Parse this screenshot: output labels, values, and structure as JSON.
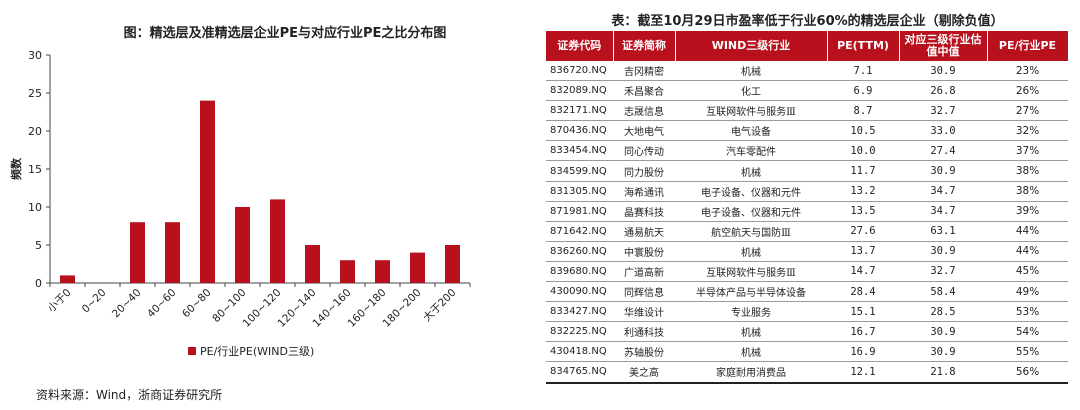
{
  "chart_title": "图：精选层及准精选层企业PE与对应行业PE之比分布图",
  "source": "资料来源：Wind，浙商证券研究所",
  "colors": {
    "bar": "#b8101d",
    "axis": "#444444",
    "header_bg": "#b8101d"
  },
  "chart_data": {
    "type": "bar",
    "categories": [
      "小于0",
      "0~20",
      "20~40",
      "40~60",
      "60~80",
      "80~100",
      "100~120",
      "120~140",
      "140~160",
      "160~180",
      "180~200",
      "大于200"
    ],
    "series": [
      {
        "name": "PE/行业PE(WIND三级)",
        "values": [
          1,
          0,
          8,
          8,
          24,
          10,
          11,
          5,
          3,
          3,
          4,
          5
        ]
      }
    ],
    "ylabel": "频数",
    "xlabel": "",
    "ylim": [
      0,
      30
    ],
    "yticks": [
      0,
      5,
      10,
      15,
      20,
      25,
      30
    ],
    "grid": false,
    "legend_position": "bottom"
  },
  "table": {
    "title": "表：截至10月29日市盈率低于行业60%的精选层企业（剔除负值）",
    "headers": [
      "证券代码",
      "证券简称",
      "WIND三级行业",
      "PE(TTM)",
      "对应三级行业估值中值",
      "PE/行业PE"
    ],
    "rows": [
      [
        "836720.NQ",
        "吉冈精密",
        "机械",
        "7.1",
        "30.9",
        "23%"
      ],
      [
        "832089.NQ",
        "禾昌聚合",
        "化工",
        "6.9",
        "26.8",
        "26%"
      ],
      [
        "832171.NQ",
        "志晟信息",
        "互联网软件与服务Ⅲ",
        "8.7",
        "32.7",
        "27%"
      ],
      [
        "870436.NQ",
        "大地电气",
        "电气设备",
        "10.5",
        "33.0",
        "32%"
      ],
      [
        "833454.NQ",
        "同心传动",
        "汽车零配件",
        "10.0",
        "27.4",
        "37%"
      ],
      [
        "834599.NQ",
        "同力股份",
        "机械",
        "11.7",
        "30.9",
        "38%"
      ],
      [
        "831305.NQ",
        "海希通讯",
        "电子设备、仪器和元件",
        "13.2",
        "34.7",
        "38%"
      ],
      [
        "871981.NQ",
        "晶赛科技",
        "电子设备、仪器和元件",
        "13.5",
        "34.7",
        "39%"
      ],
      [
        "871642.NQ",
        "通易航天",
        "航空航天与国防Ⅲ",
        "27.6",
        "63.1",
        "44%"
      ],
      [
        "836260.NQ",
        "中寰股份",
        "机械",
        "13.7",
        "30.9",
        "44%"
      ],
      [
        "839680.NQ",
        "广道高新",
        "互联网软件与服务Ⅲ",
        "14.7",
        "32.7",
        "45%"
      ],
      [
        "430090.NQ",
        "同辉信息",
        "半导体产品与半导体设备",
        "28.4",
        "58.4",
        "49%"
      ],
      [
        "833427.NQ",
        "华维设计",
        "专业服务",
        "15.1",
        "28.5",
        "53%"
      ],
      [
        "832225.NQ",
        "利通科技",
        "机械",
        "16.7",
        "30.9",
        "54%"
      ],
      [
        "430418.NQ",
        "苏轴股份",
        "机械",
        "16.9",
        "30.9",
        "55%"
      ],
      [
        "834765.NQ",
        "美之高",
        "家庭耐用消费品",
        "12.1",
        "21.8",
        "56%"
      ]
    ]
  }
}
